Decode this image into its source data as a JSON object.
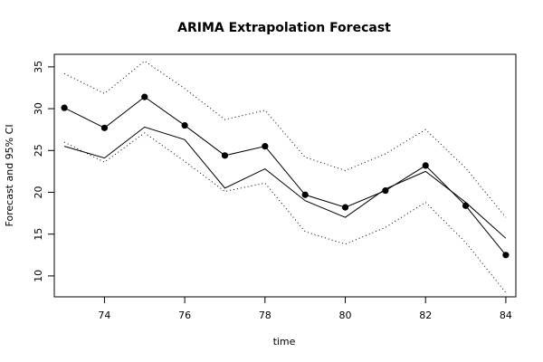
{
  "chart_data": {
    "type": "line",
    "title": "ARIMA Extrapolation Forecast",
    "xlabel": "time",
    "ylabel": "Forecast and 95% CI",
    "xlim": [
      72.75,
      84.25
    ],
    "ylim": [
      7.5,
      36.5
    ],
    "x_ticks": [
      74,
      76,
      78,
      80,
      82,
      84
    ],
    "y_ticks": [
      10,
      15,
      20,
      25,
      30,
      35
    ],
    "x": [
      73,
      74,
      75,
      76,
      77,
      78,
      79,
      80,
      81,
      82,
      83,
      84
    ],
    "series": [
      {
        "role": "forecast",
        "style": "solid line with filled circle points",
        "values": [
          30.1,
          27.7,
          31.4,
          28.0,
          24.4,
          25.5,
          19.7,
          18.2,
          20.2,
          23.2,
          18.4,
          12.5
        ]
      },
      {
        "role": "actual",
        "style": "solid line",
        "values": [
          25.5,
          24.1,
          27.8,
          26.3,
          20.5,
          22.8,
          19.0,
          17.0,
          20.4,
          22.5,
          18.8,
          14.5
        ]
      },
      {
        "role": "upper_95_ci",
        "style": "dotted line",
        "values": [
          34.2,
          31.8,
          35.7,
          32.4,
          28.7,
          29.8,
          24.2,
          22.6,
          24.6,
          27.5,
          22.9,
          17.0
        ]
      },
      {
        "role": "lower_95_ci",
        "style": "dotted line",
        "values": [
          26.0,
          23.6,
          27.1,
          23.7,
          20.1,
          21.1,
          15.3,
          13.8,
          15.8,
          18.8,
          14.0,
          8.0
        ]
      }
    ],
    "grid": false,
    "legend": "none",
    "colors": {
      "line": "#000000",
      "background": "#ffffff"
    }
  }
}
